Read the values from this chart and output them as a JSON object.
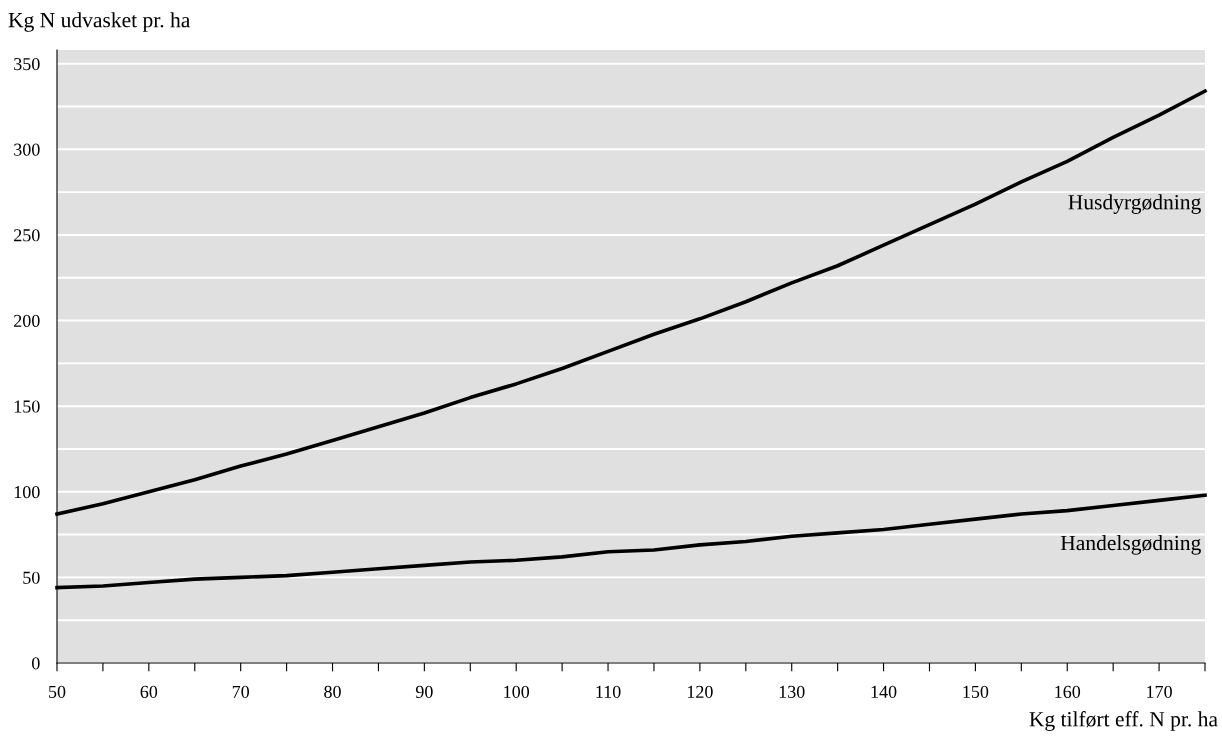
{
  "chart_data": {
    "type": "line",
    "xlabel": "Kg tilført eff. N pr. ha",
    "ylabel": "Kg N udvasket pr. ha",
    "x": [
      50,
      55,
      60,
      65,
      70,
      75,
      80,
      85,
      90,
      95,
      100,
      105,
      110,
      115,
      120,
      125,
      130,
      135,
      140,
      145,
      150,
      155,
      160,
      165,
      170,
      175
    ],
    "series": [
      {
        "name": "Husdyrgødning",
        "color": "#000000",
        "values": [
          87,
          93,
          100,
          107,
          115,
          122,
          130,
          138,
          146,
          155,
          163,
          172,
          182,
          192,
          201,
          211,
          222,
          232,
          244,
          256,
          268,
          281,
          293,
          307,
          320,
          334
        ]
      },
      {
        "name": "Handelsgødning",
        "color": "#000000",
        "values": [
          44,
          45,
          47,
          49,
          50,
          51,
          53,
          55,
          57,
          59,
          60,
          62,
          65,
          66,
          69,
          71,
          74,
          76,
          78,
          81,
          84,
          87,
          89,
          92,
          95,
          98
        ]
      }
    ],
    "xlim": [
      50,
      175
    ],
    "xticks": [
      50,
      {
        "value": 55,
        "label": null
      },
      60,
      {
        "value": 65,
        "label": null
      },
      70,
      {
        "value": 75,
        "label": null
      },
      80,
      {
        "value": 85,
        "label": null
      },
      90,
      {
        "value": 95,
        "label": null
      },
      100,
      {
        "value": 105,
        "label": null
      },
      110,
      {
        "value": 115,
        "label": null
      },
      120,
      {
        "value": 125,
        "label": null
      },
      130,
      {
        "value": 135,
        "label": null
      },
      140,
      {
        "value": 145,
        "label": null
      },
      150,
      {
        "value": 155,
        "label": null
      },
      160,
      {
        "value": 165,
        "label": null
      },
      170,
      {
        "value": 175,
        "label": null
      }
    ],
    "ylim": [
      0,
      358
    ],
    "yticks": [
      0,
      {
        "value": 25,
        "label": null
      },
      50,
      {
        "value": 75,
        "label": null
      },
      100,
      {
        "value": 125,
        "label": null
      },
      150,
      {
        "value": 175,
        "label": null
      },
      200,
      {
        "value": 225,
        "label": null
      },
      250,
      {
        "value": 275,
        "label": null
      },
      300,
      {
        "value": 325,
        "label": null
      },
      350
    ],
    "grid": "y",
    "legend": false,
    "marker": "none",
    "line_style": "solid"
  }
}
